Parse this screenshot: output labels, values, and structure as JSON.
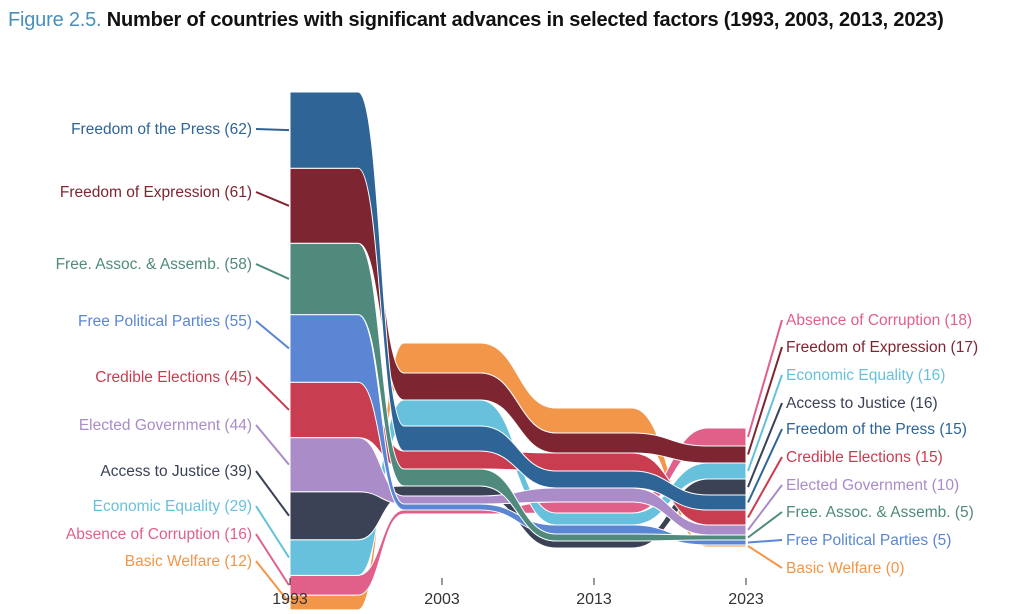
{
  "header": {
    "figure_label": "Figure 2.5.",
    "title": "Number of countries with significant advances in selected factors (1993, 2003, 2013, 2023)"
  },
  "chart_data": {
    "type": "bump-area",
    "title": "Number of countries with significant advances in selected factors (1993, 2003, 2013, 2023)",
    "x": [
      1993,
      2003,
      2013,
      2023
    ],
    "x_tick_labels": [
      "1993",
      "2003",
      "2013",
      "2023"
    ],
    "legend": "labels at start and end",
    "series": [
      {
        "name": "Freedom of the Press",
        "color": "#2e6496",
        "values": [
          62,
          25,
          17,
          15
        ],
        "label_start": "Freedom of the Press (62)",
        "label_end": "Freedom of the Press (15)"
      },
      {
        "name": "Freedom of Expression",
        "color": "#7d2531",
        "values": [
          61,
          27,
          20,
          17
        ],
        "label_start": "Freedom of Expression (61)",
        "label_end": "Freedom of Expression (17)"
      },
      {
        "name": "Free. Assoc. & Assemb.",
        "color": "#4f8a7c",
        "values": [
          58,
          17,
          7,
          5
        ],
        "label_start": "Free. Assoc. & Assemb. (58)",
        "label_end": "Free. Assoc. & Assemb. (5)"
      },
      {
        "name": "Free Political Parties",
        "color": "#5a86d4",
        "values": [
          55,
          6,
          9,
          5
        ],
        "label_start": "Free Political Parties (55)",
        "label_end": "Free Political Parties (5)"
      },
      {
        "name": "Credible Elections",
        "color": "#c83d4f",
        "values": [
          45,
          18,
          18,
          15
        ],
        "label_start": "Credible Elections (45)",
        "label_end": "Credible Elections (15)"
      },
      {
        "name": "Elected Government",
        "color": "#a98cc8",
        "values": [
          44,
          8,
          14,
          10
        ],
        "label_start": "Elected Government (44)",
        "label_end": "Elected Government (10)"
      },
      {
        "name": "Access to Justice",
        "color": "#3b4256",
        "values": [
          39,
          10,
          7,
          16
        ],
        "label_start": "Access to Justice (39)",
        "label_end": "Access to Justice (16)"
      },
      {
        "name": "Economic Equality",
        "color": "#67c1dc",
        "values": [
          29,
          26,
          12,
          16
        ],
        "label_start": "Economic Equality (29)",
        "label_end": "Economic Equality (16)"
      },
      {
        "name": "Absence of Corruption",
        "color": "#e0608a",
        "values": [
          16,
          4,
          11,
          18
        ],
        "label_start": "Absence of Corruption (16)",
        "label_end": "Absence of Corruption (18)"
      },
      {
        "name": "Basic Welfare",
        "color": "#f2964a",
        "values": [
          12,
          30,
          25,
          0
        ],
        "label_start": "Basic Welfare (12)",
        "label_end": "Basic Welfare (0)"
      }
    ]
  }
}
